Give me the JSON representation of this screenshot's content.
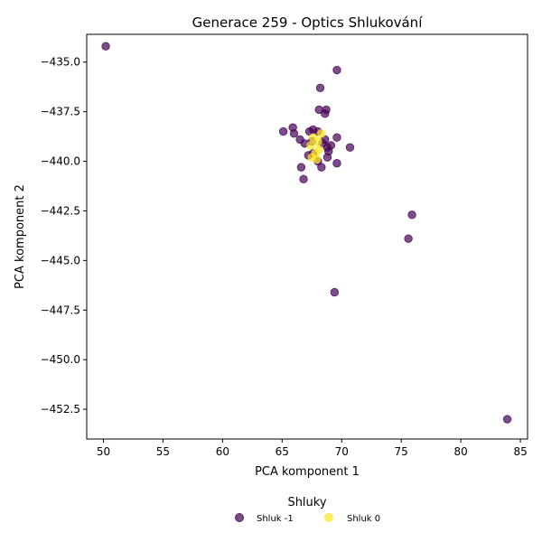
{
  "chart_data": {
    "type": "scatter",
    "title": "Generace 259 - Optics Shlukování",
    "xlabel": "PCA komponent 1",
    "ylabel": "PCA komponent 2",
    "xlim": [
      48.6,
      85.6
    ],
    "ylim": [
      -454.0,
      -433.6
    ],
    "xticks": [
      50,
      55,
      60,
      65,
      70,
      75,
      80,
      85
    ],
    "yticks": [
      -435.0,
      -437.5,
      -440.0,
      -442.5,
      -445.0,
      -447.5,
      -450.0,
      -452.5
    ],
    "xtick_labels": [
      "50",
      "55",
      "60",
      "65",
      "70",
      "75",
      "80",
      "85"
    ],
    "ytick_labels": [
      "−435.0",
      "−437.5",
      "−440.0",
      "−442.5",
      "−445.0",
      "−447.5",
      "−450.0",
      "−452.5"
    ],
    "grid": false,
    "legend": {
      "title": "Shluky",
      "placement": "bottom-center",
      "entries": [
        "Shluk -1",
        "Shluk 0"
      ]
    },
    "series": [
      {
        "name": "Shluk -1",
        "color": "#440154",
        "points": [
          [
            50.2,
            -434.2
          ],
          [
            69.6,
            -435.4
          ],
          [
            68.2,
            -436.3
          ],
          [
            68.1,
            -437.4
          ],
          [
            68.7,
            -437.4
          ],
          [
            68.6,
            -437.6
          ],
          [
            65.9,
            -438.3
          ],
          [
            65.1,
            -438.5
          ],
          [
            66.0,
            -438.6
          ],
          [
            67.3,
            -438.5
          ],
          [
            67.6,
            -438.4
          ],
          [
            68.0,
            -438.5
          ],
          [
            66.5,
            -438.9
          ],
          [
            66.9,
            -439.1
          ],
          [
            67.5,
            -439.0
          ],
          [
            68.6,
            -438.9
          ],
          [
            69.6,
            -438.8
          ],
          [
            69.1,
            -439.2
          ],
          [
            68.8,
            -439.3
          ],
          [
            68.9,
            -439.5
          ],
          [
            68.4,
            -439.1
          ],
          [
            70.7,
            -439.3
          ],
          [
            67.2,
            -439.7
          ],
          [
            67.6,
            -439.6
          ],
          [
            68.8,
            -439.8
          ],
          [
            68.0,
            -440.0
          ],
          [
            69.6,
            -440.1
          ],
          [
            66.6,
            -440.3
          ],
          [
            68.3,
            -440.3
          ],
          [
            66.8,
            -440.9
          ],
          [
            75.9,
            -442.7
          ],
          [
            75.6,
            -443.9
          ],
          [
            69.4,
            -446.6
          ],
          [
            83.9,
            -453.0
          ]
        ]
      },
      {
        "name": "Shluk 0",
        "color": "#fde725",
        "points": [
          [
            68.3,
            -438.6
          ],
          [
            67.6,
            -438.8
          ],
          [
            68.0,
            -439.0
          ],
          [
            67.4,
            -439.2
          ],
          [
            68.1,
            -439.4
          ],
          [
            67.8,
            -439.6
          ],
          [
            67.5,
            -439.8
          ],
          [
            67.9,
            -439.9
          ]
        ]
      }
    ]
  }
}
